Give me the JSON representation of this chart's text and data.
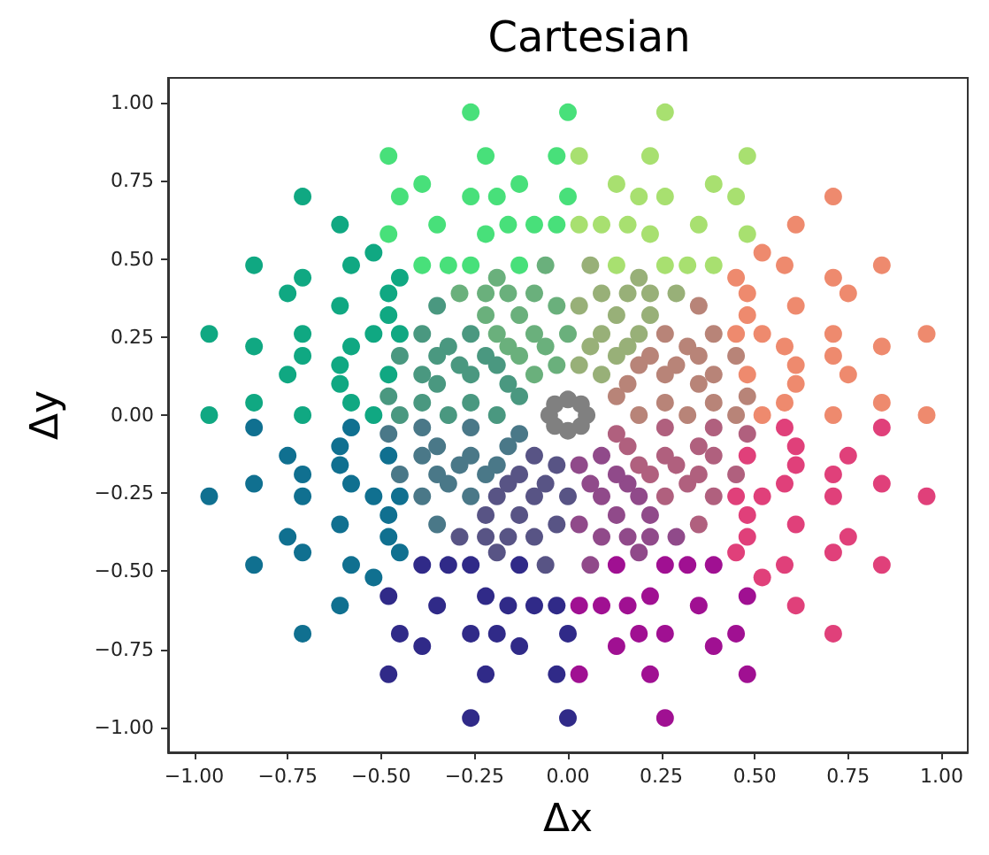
{
  "chart_data": {
    "type": "scatter",
    "title": "Cartesian",
    "xlabel": "Δx",
    "ylabel": "Δy",
    "xlim": [
      -1.07,
      1.07
    ],
    "ylim": [
      -1.08,
      1.08
    ],
    "xticks": [
      {
        "value": -1,
        "label": "−1.00"
      },
      {
        "value": -0.75,
        "label": "−0.75"
      },
      {
        "value": -0.5,
        "label": "−0.50"
      },
      {
        "value": -0.25,
        "label": "−0.25"
      },
      {
        "value": 0,
        "label": "0.00"
      },
      {
        "value": 0.25,
        "label": "0.25"
      },
      {
        "value": 0.5,
        "label": "0.50"
      },
      {
        "value": 0.75,
        "label": "0.75"
      },
      {
        "value": 1,
        "label": "1.00"
      }
    ],
    "yticks": [
      {
        "value": -1,
        "label": "−1.00"
      },
      {
        "value": -0.75,
        "label": "−0.75"
      },
      {
        "value": -0.5,
        "label": "−0.50"
      },
      {
        "value": -0.25,
        "label": "−0.25"
      },
      {
        "value": 0,
        "label": "0.00"
      },
      {
        "value": 0.25,
        "label": "0.25"
      },
      {
        "value": 0.5,
        "label": "0.50"
      },
      {
        "value": 0.75,
        "label": "0.75"
      },
      {
        "value": 1,
        "label": "1.00"
      }
    ],
    "grid": false,
    "marker": "circle",
    "series": [
      {
        "color": "#10a882",
        "x": [
          -0.71,
          -0.61,
          -0.52,
          -0.84,
          -0.58,
          -0.71,
          -0.45,
          -0.75,
          -0.48,
          -0.61,
          -0.48,
          -0.96,
          -0.71,
          -0.52,
          -0.45,
          -0.84,
          -0.58,
          -0.71,
          -0.61,
          -0.75,
          -0.48,
          -0.61,
          -0.84,
          -0.58,
          -0.96,
          -0.71,
          -0.52
        ],
        "values": [
          0.7,
          0.61,
          0.52,
          0.48,
          0.48,
          0.44,
          0.44,
          0.39,
          0.39,
          0.35,
          0.32,
          0.26,
          0.26,
          0.26,
          0.26,
          0.22,
          0.22,
          0.19,
          0.16,
          0.13,
          0.13,
          0.1,
          0.04,
          0.04,
          0,
          0,
          0
        ]
      },
      {
        "color": "#4a9880",
        "x": [
          -0.35,
          -0.39,
          -0.26,
          -0.32,
          -0.45,
          -0.35,
          -0.22,
          -0.29,
          -0.19,
          -0.39,
          -0.26,
          -0.35,
          -0.16,
          -0.48,
          -0.13,
          -0.39,
          -0.26,
          -0.45,
          -0.32,
          -0.19
        ],
        "values": [
          0.35,
          0.26,
          0.26,
          0.22,
          0.19,
          0.19,
          0.19,
          0.16,
          0.16,
          0.13,
          0.13,
          0.1,
          0.1,
          0.06,
          0.06,
          0.04,
          0.04,
          0,
          0,
          0
        ]
      },
      {
        "color": "#48e07a",
        "x": [
          -0.26,
          -0.48,
          -0.22,
          -0.03,
          -0.39,
          -0.13,
          -0.45,
          -0.26,
          -0.19,
          -0.35,
          -0.16,
          -0.09,
          -0.03,
          -0.48,
          -0.22,
          -0.39,
          -0.32,
          -0.26,
          -0.13,
          0,
          0
        ],
        "values": [
          0.97,
          0.83,
          0.83,
          0.83,
          0.74,
          0.74,
          0.7,
          0.7,
          0.7,
          0.61,
          0.61,
          0.61,
          0.61,
          0.58,
          0.58,
          0.48,
          0.48,
          0.48,
          0.48,
          0.97,
          0.7
        ]
      },
      {
        "color": "#6ab07c",
        "x": [
          -0.06,
          -0.19,
          -0.29,
          -0.22,
          -0.16,
          -0.09,
          -0.03,
          -0.22,
          -0.13,
          -0.19,
          -0.09,
          -0.16,
          -0.06,
          -0.13,
          -0.03,
          -0.09,
          0
        ],
        "values": [
          0.48,
          0.44,
          0.39,
          0.39,
          0.39,
          0.39,
          0.35,
          0.32,
          0.32,
          0.26,
          0.26,
          0.22,
          0.22,
          0.19,
          0.16,
          0.13,
          0.26
        ]
      },
      {
        "color": "#a8e070",
        "x": [
          0.26,
          0.48,
          0.22,
          0.03,
          0.39,
          0.13,
          0.45,
          0.26,
          0.19,
          0.35,
          0.16,
          0.09,
          0.03,
          0.48,
          0.22,
          0.39,
          0.32,
          0.26,
          0.13
        ],
        "values": [
          0.97,
          0.83,
          0.83,
          0.83,
          0.74,
          0.74,
          0.7,
          0.7,
          0.7,
          0.61,
          0.61,
          0.61,
          0.61,
          0.58,
          0.58,
          0.48,
          0.48,
          0.48,
          0.48
        ]
      },
      {
        "color": "#98b078",
        "x": [
          0.06,
          0.19,
          0.29,
          0.22,
          0.16,
          0.09,
          0.03,
          0.22,
          0.13,
          0.19,
          0.09,
          0.16,
          0.06,
          0.13,
          0.03,
          0.09
        ],
        "values": [
          0.48,
          0.44,
          0.39,
          0.39,
          0.39,
          0.39,
          0.35,
          0.32,
          0.32,
          0.26,
          0.26,
          0.22,
          0.22,
          0.19,
          0.16,
          0.13
        ]
      },
      {
        "color": "#ee8a6e",
        "x": [
          0.71,
          0.61,
          0.52,
          0.84,
          0.58,
          0.71,
          0.45,
          0.75,
          0.48,
          0.61,
          0.48,
          0.96,
          0.71,
          0.52,
          0.45,
          0.84,
          0.58,
          0.71,
          0.61,
          0.75,
          0.48,
          0.61,
          0.84,
          0.58,
          0.96,
          0.71,
          0.52
        ],
        "values": [
          0.7,
          0.61,
          0.52,
          0.48,
          0.48,
          0.44,
          0.44,
          0.39,
          0.39,
          0.35,
          0.32,
          0.26,
          0.26,
          0.26,
          0.26,
          0.22,
          0.22,
          0.19,
          0.16,
          0.13,
          0.13,
          0.1,
          0.04,
          0.04,
          0,
          0,
          0
        ]
      },
      {
        "color": "#b88478",
        "x": [
          0.35,
          0.39,
          0.26,
          0.32,
          0.45,
          0.35,
          0.22,
          0.29,
          0.19,
          0.39,
          0.26,
          0.35,
          0.16,
          0.48,
          0.13,
          0.39,
          0.26,
          0.45,
          0.32,
          0.19
        ],
        "values": [
          0.35,
          0.26,
          0.26,
          0.22,
          0.19,
          0.19,
          0.19,
          0.16,
          0.16,
          0.13,
          0.13,
          0.1,
          0.1,
          0.06,
          0.06,
          0.04,
          0.04,
          0,
          0,
          0
        ]
      },
      {
        "color": "#107090",
        "x": [
          -0.71,
          -0.61,
          -0.52,
          -0.84,
          -0.58,
          -0.71,
          -0.45,
          -0.75,
          -0.48,
          -0.61,
          -0.48,
          -0.96,
          -0.71,
          -0.52,
          -0.45,
          -0.84,
          -0.58,
          -0.71,
          -0.61,
          -0.75,
          -0.48,
          -0.61,
          -0.84,
          -0.58
        ],
        "values": [
          -0.7,
          -0.61,
          -0.52,
          -0.48,
          -0.48,
          -0.44,
          -0.44,
          -0.39,
          -0.39,
          -0.35,
          -0.32,
          -0.26,
          -0.26,
          -0.26,
          -0.26,
          -0.22,
          -0.22,
          -0.19,
          -0.16,
          -0.13,
          -0.13,
          -0.1,
          -0.04,
          -0.04
        ]
      },
      {
        "color": "#4a7888",
        "x": [
          -0.35,
          -0.39,
          -0.26,
          -0.32,
          -0.45,
          -0.35,
          -0.22,
          -0.29,
          -0.19,
          -0.39,
          -0.26,
          -0.35,
          -0.16,
          -0.48,
          -0.13,
          -0.39,
          -0.26
        ],
        "values": [
          -0.35,
          -0.26,
          -0.26,
          -0.22,
          -0.19,
          -0.19,
          -0.19,
          -0.16,
          -0.16,
          -0.13,
          -0.13,
          -0.1,
          -0.1,
          -0.06,
          -0.06,
          -0.04,
          -0.04
        ]
      },
      {
        "color": "#302a88",
        "x": [
          -0.26,
          -0.48,
          -0.22,
          -0.03,
          -0.39,
          -0.13,
          -0.45,
          -0.26,
          -0.19,
          -0.35,
          -0.16,
          -0.09,
          -0.03,
          -0.48,
          -0.22,
          -0.39,
          -0.32,
          -0.26,
          -0.13,
          0,
          0
        ],
        "values": [
          -0.97,
          -0.83,
          -0.83,
          -0.83,
          -0.74,
          -0.74,
          -0.7,
          -0.7,
          -0.7,
          -0.61,
          -0.61,
          -0.61,
          -0.61,
          -0.58,
          -0.58,
          -0.48,
          -0.48,
          -0.48,
          -0.48,
          -0.97,
          -0.7
        ]
      },
      {
        "color": "#585485",
        "x": [
          -0.06,
          -0.19,
          -0.29,
          -0.22,
          -0.16,
          -0.09,
          -0.03,
          -0.22,
          -0.13,
          -0.19,
          -0.09,
          -0.16,
          -0.06,
          -0.13,
          -0.03,
          -0.09,
          0
        ],
        "values": [
          -0.48,
          -0.44,
          -0.39,
          -0.39,
          -0.39,
          -0.39,
          -0.35,
          -0.32,
          -0.32,
          -0.26,
          -0.26,
          -0.22,
          -0.22,
          -0.19,
          -0.16,
          -0.13,
          -0.26
        ]
      },
      {
        "color": "#a01092",
        "x": [
          0.26,
          0.48,
          0.22,
          0.03,
          0.39,
          0.13,
          0.45,
          0.26,
          0.19,
          0.35,
          0.16,
          0.09,
          0.03,
          0.48,
          0.22,
          0.39,
          0.32,
          0.26,
          0.13
        ],
        "values": [
          -0.97,
          -0.83,
          -0.83,
          -0.83,
          -0.74,
          -0.74,
          -0.7,
          -0.7,
          -0.7,
          -0.61,
          -0.61,
          -0.61,
          -0.61,
          -0.58,
          -0.58,
          -0.48,
          -0.48,
          -0.48,
          -0.48
        ]
      },
      {
        "color": "#904a8a",
        "x": [
          0.06,
          0.19,
          0.29,
          0.22,
          0.16,
          0.09,
          0.03,
          0.22,
          0.13,
          0.19,
          0.09,
          0.16,
          0.06,
          0.13,
          0.03,
          0.09
        ],
        "values": [
          -0.48,
          -0.44,
          -0.39,
          -0.39,
          -0.39,
          -0.39,
          -0.35,
          -0.32,
          -0.32,
          -0.26,
          -0.26,
          -0.22,
          -0.22,
          -0.19,
          -0.16,
          -0.13
        ]
      },
      {
        "color": "#e0407a",
        "x": [
          0.71,
          0.61,
          0.52,
          0.84,
          0.58,
          0.71,
          0.45,
          0.75,
          0.48,
          0.61,
          0.48,
          0.96,
          0.71,
          0.52,
          0.45,
          0.84,
          0.58,
          0.71,
          0.61,
          0.75,
          0.48,
          0.61,
          0.84,
          0.58
        ],
        "values": [
          -0.7,
          -0.61,
          -0.52,
          -0.48,
          -0.48,
          -0.44,
          -0.44,
          -0.39,
          -0.39,
          -0.35,
          -0.32,
          -0.26,
          -0.26,
          -0.26,
          -0.26,
          -0.22,
          -0.22,
          -0.19,
          -0.16,
          -0.13,
          -0.13,
          -0.1,
          -0.04,
          -0.04
        ]
      },
      {
        "color": "#b0607e",
        "x": [
          0.35,
          0.39,
          0.26,
          0.32,
          0.45,
          0.35,
          0.22,
          0.29,
          0.19,
          0.39,
          0.26,
          0.35,
          0.16,
          0.48,
          0.13,
          0.39,
          0.26
        ],
        "values": [
          -0.35,
          -0.26,
          -0.26,
          -0.22,
          -0.19,
          -0.19,
          -0.19,
          -0.16,
          -0.16,
          -0.13,
          -0.13,
          -0.1,
          -0.1,
          -0.06,
          -0.06,
          -0.04,
          -0.04
        ]
      },
      {
        "color": "#808080",
        "x": [
          0.05,
          -0.05,
          0,
          0,
          0.035,
          -0.035,
          0.035,
          -0.035
        ],
        "values": [
          0,
          0,
          0.05,
          -0.05,
          0.035,
          0.035,
          -0.035,
          -0.035
        ]
      }
    ]
  }
}
